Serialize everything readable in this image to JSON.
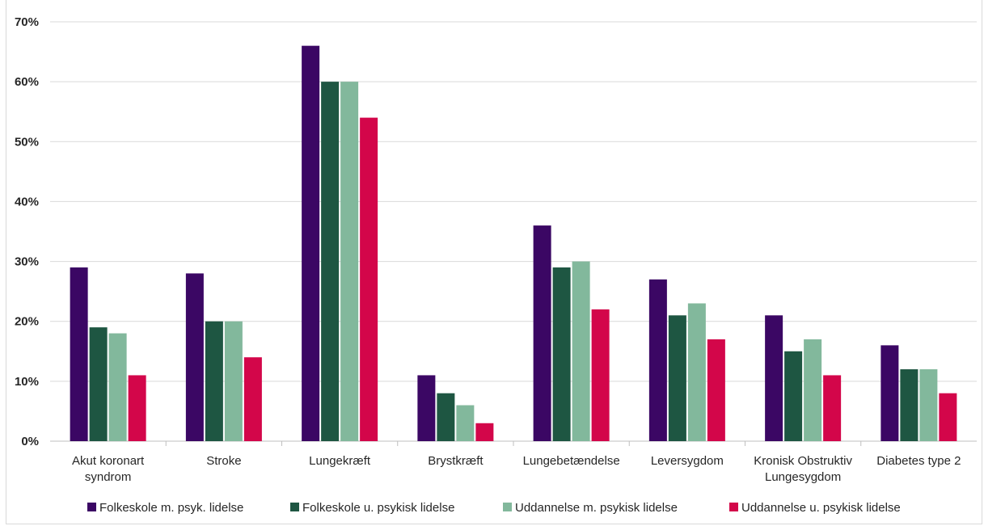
{
  "chart_data": {
    "type": "bar",
    "categories": [
      [
        "Akut koronart",
        "syndrom"
      ],
      [
        "Stroke"
      ],
      [
        "Lungekræft"
      ],
      [
        "Brystkræft"
      ],
      [
        "Lungebetændelse"
      ],
      [
        "Leversygdom"
      ],
      [
        "Kronisk Obstruktiv",
        "Lungesygdom"
      ],
      [
        "Diabetes type 2"
      ]
    ],
    "series": [
      {
        "name": "Folkeskole m. psyk. lidelse",
        "color": "#3b0764",
        "values": [
          29,
          28,
          66,
          11,
          36,
          27,
          21,
          16
        ]
      },
      {
        "name": "Folkeskole u. psykisk lidelse",
        "color": "#1e5642",
        "values": [
          19,
          20,
          60,
          8,
          29,
          21,
          15,
          12
        ]
      },
      {
        "name": "Uddannelse m. psykisk lidelse",
        "color": "#82b89c",
        "values": [
          18,
          20,
          60,
          6,
          30,
          23,
          17,
          12
        ]
      },
      {
        "name": "Uddannelse u. psykisk lidelse",
        "color": "#d3064a",
        "values": [
          11,
          14,
          54,
          3,
          22,
          17,
          11,
          8
        ]
      }
    ],
    "yticks": [
      "0%",
      "10%",
      "20%",
      "30%",
      "40%",
      "50%",
      "60%",
      "70%"
    ],
    "ylim": [
      0,
      70
    ],
    "grid": true,
    "legend_position": "bottom"
  }
}
